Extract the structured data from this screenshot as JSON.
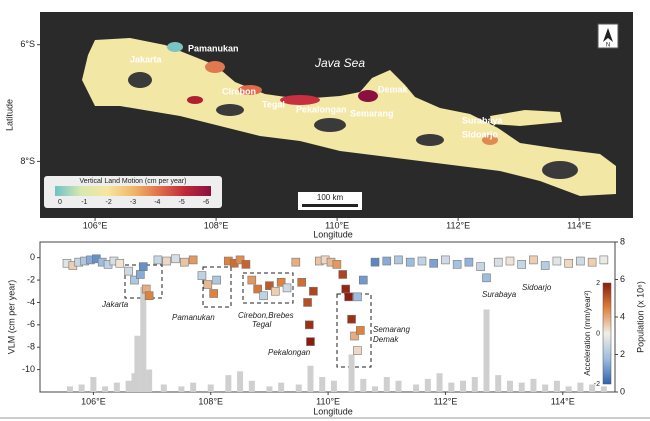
{
  "map": {
    "sea_label": "Java Sea",
    "cities": [
      "Jakarta",
      "Pamanukan",
      "Cirebon",
      "Tegal",
      "Pekalongan",
      "Semarang",
      "Demak",
      "Surabaya",
      "Sidoarjo"
    ],
    "xlabel": "Longitude",
    "ylabel": "Latitude",
    "xlim": [
      105.09,
      114.89
    ],
    "xticks": [
      {
        "value": 106,
        "label": "106°E"
      },
      {
        "value": 108,
        "label": "108°E"
      },
      {
        "value": 110,
        "label": "110°E"
      },
      {
        "value": 112,
        "label": "112°E"
      },
      {
        "value": 114,
        "label": "114°E"
      }
    ],
    "ylim": [
      -8.97,
      -5.44
    ],
    "yticks": [
      {
        "value": -6,
        "label": "6°S"
      },
      {
        "value": -8,
        "label": "8°S"
      }
    ],
    "legend": {
      "title": "Vertical Land Motion (cm per year)",
      "ticks": [
        0,
        -1,
        -2,
        -3,
        -4,
        -5,
        -6
      ],
      "colors": [
        "#6fc0c8",
        "#d8e8b0",
        "#f6e6a0",
        "#f0b868",
        "#e0704a",
        "#c02838",
        "#8a1040"
      ]
    },
    "scale_bar": "100 km",
    "north": "N"
  },
  "chart_data": {
    "type": "scatter",
    "xlabel": "Longitude",
    "ylabel": "VLM (cm per year)",
    "y2label": "Population (x 10⁶)",
    "xlim": [
      105.09,
      114.89
    ],
    "xticks": [
      {
        "value": 106,
        "label": "106°E"
      },
      {
        "value": 108,
        "label": "108°E"
      },
      {
        "value": 110,
        "label": "110°E"
      },
      {
        "value": 112,
        "label": "112°E"
      },
      {
        "value": 114,
        "label": "114°E"
      }
    ],
    "ylim": [
      -12,
      1.4
    ],
    "yticks": [
      0,
      -2,
      -4,
      -6,
      -8,
      -10
    ],
    "y2lim": [
      0,
      8
    ],
    "y2ticks": [
      0,
      2,
      4,
      6,
      8
    ],
    "x": [
      105.55,
      105.65,
      105.75,
      105.85,
      105.95,
      106.05,
      106.15,
      106.25,
      106.35,
      106.45,
      106.6,
      106.7,
      106.8,
      106.9,
      106.95,
      106.85,
      107.1,
      107.25,
      107.4,
      107.55,
      107.7,
      107.85,
      107.95,
      108.05,
      108.1,
      108.3,
      108.4,
      108.5,
      108.6,
      108.7,
      108.8,
      108.9,
      109.0,
      109.1,
      109.2,
      109.3,
      109.45,
      109.55,
      109.65,
      109.68,
      109.7,
      109.75,
      109.85,
      109.95,
      110.05,
      110.15,
      110.25,
      110.3,
      110.35,
      110.4,
      110.45,
      110.5,
      110.5,
      110.55,
      110.6,
      110.8,
      111.0,
      111.2,
      111.4,
      111.6,
      111.8,
      112.0,
      112.2,
      112.4,
      112.6,
      112.7,
      112.9,
      113.1,
      113.3,
      113.5,
      113.7,
      113.9,
      114.1,
      114.3,
      114.5,
      114.7
    ],
    "values": [
      -0.5,
      -0.7,
      -0.4,
      -0.3,
      -0.2,
      -0.1,
      -0.4,
      -0.6,
      -0.3,
      -0.5,
      -1.2,
      -2.0,
      -1.5,
      -2.8,
      -3.4,
      -0.8,
      -0.2,
      -0.3,
      -0.1,
      -0.4,
      -0.2,
      -1.6,
      -2.4,
      -3.2,
      -2.0,
      -0.3,
      -0.5,
      -0.2,
      -0.6,
      -2.0,
      -2.8,
      -3.4,
      -2.5,
      -3.0,
      -2.2,
      -2.7,
      -0.4,
      -2.2,
      -4.0,
      -6.0,
      -7.5,
      -3.0,
      -0.3,
      -0.2,
      -0.4,
      -0.6,
      -1.5,
      -2.8,
      -3.5,
      -5.5,
      -7.0,
      -8.3,
      -3.5,
      -6.5,
      -2.0,
      -0.4,
      -0.3,
      -0.2,
      -0.4,
      -0.3,
      -0.5,
      -0.2,
      -0.6,
      -0.4,
      -0.8,
      -1.8,
      -0.4,
      -0.3,
      -0.6,
      -0.2,
      -0.7,
      -0.3,
      -0.5,
      -0.3,
      -0.4,
      -0.2
    ],
    "acceleration": [
      -0.2,
      0.3,
      -0.5,
      -0.8,
      -1.2,
      -1.5,
      -1.0,
      -0.6,
      -0.3,
      0.1,
      -0.4,
      -0.8,
      -1.2,
      0.6,
      1.0,
      -1.5,
      -0.5,
      0.2,
      -0.3,
      0.4,
      0.8,
      -0.6,
      0.5,
      1.0,
      -0.8,
      1.0,
      1.2,
      0.9,
      1.3,
      0.8,
      1.1,
      -0.6,
      1.4,
      0.3,
      1.0,
      -0.4,
      0.6,
      1.2,
      1.5,
      1.8,
      2.0,
      1.6,
      0.4,
      0.2,
      0.5,
      0.8,
      1.6,
      1.9,
      2.0,
      1.8,
      0.6,
      0.2,
      -1.0,
      1.0,
      -1.4,
      -1.6,
      -1.2,
      -0.8,
      -1.0,
      -0.6,
      -1.3,
      -0.4,
      -0.9,
      -1.1,
      -0.5,
      -1.0,
      -0.3,
      0.1,
      -0.5,
      0.3,
      -0.7,
      -0.2,
      0.2,
      -0.4,
      0.3,
      -0.1
    ],
    "colorbar": {
      "label": "Acceleration (mm/year²)",
      "lim": [
        -2,
        2
      ],
      "ticks": [
        2,
        0,
        -2
      ],
      "colors": [
        "#2f62ad",
        "#9dbde0",
        "#f1eee6",
        "#e0823c",
        "#8c1c0e"
      ]
    },
    "population": {
      "color": "#cfcfcf",
      "x": [
        105.6,
        105.8,
        106.0,
        106.2,
        106.4,
        106.6,
        106.7,
        106.75,
        106.85,
        106.95,
        107.2,
        107.5,
        107.7,
        108.0,
        108.3,
        108.5,
        108.7,
        109.0,
        109.2,
        109.5,
        109.7,
        109.9,
        110.1,
        110.4,
        110.6,
        110.8,
        111.0,
        111.2,
        111.5,
        111.7,
        111.9,
        112.1,
        112.3,
        112.5,
        112.7,
        112.9,
        113.1,
        113.3,
        113.5,
        113.7,
        113.9,
        114.1,
        114.3,
        114.5,
        114.7
      ],
      "values": [
        0.3,
        0.4,
        0.8,
        0.3,
        0.5,
        0.6,
        1.0,
        3.0,
        5.6,
        1.2,
        0.4,
        0.3,
        0.5,
        0.4,
        0.9,
        1.1,
        0.6,
        0.3,
        0.5,
        0.4,
        1.4,
        0.8,
        0.6,
        2.0,
        0.7,
        0.3,
        0.8,
        0.6,
        0.4,
        0.7,
        1.0,
        0.5,
        0.6,
        0.8,
        4.4,
        0.9,
        0.6,
        0.5,
        0.7,
        0.4,
        0.6,
        0.3,
        0.5,
        0.4,
        0.3
      ]
    },
    "annotations": [
      "Jakarta",
      "Pamanukan",
      "Cirebon,Brebes",
      "Tegal",
      "Pekalongan",
      "Semarang",
      "Demak",
      "Surabaya",
      "Sidoarjo"
    ]
  }
}
